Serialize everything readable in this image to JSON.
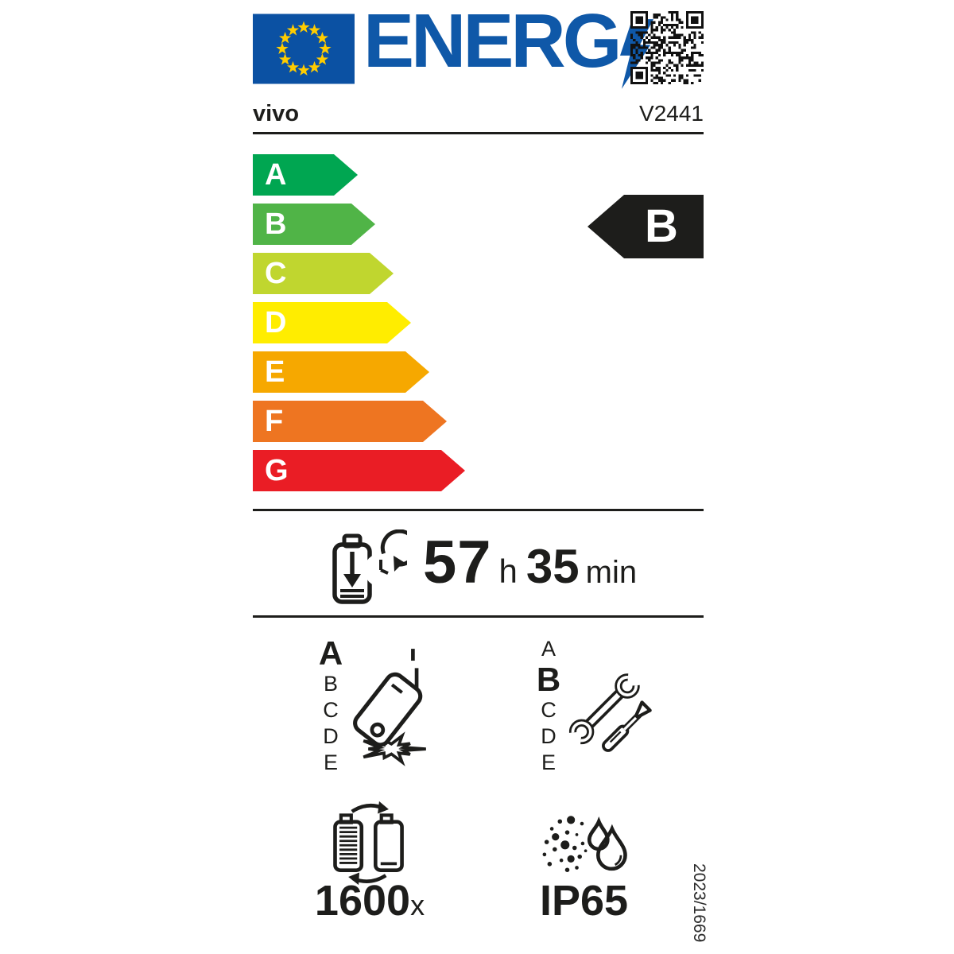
{
  "header": {
    "logo_text": "ENERG",
    "logo_color": "#0f58a8",
    "flag_color": "#0b51a3",
    "star_color": "#ffcc00"
  },
  "brand": {
    "name": "vivo",
    "model": "V2441"
  },
  "energy_scale": {
    "grades": [
      {
        "label": "A",
        "color": "#00a651"
      },
      {
        "label": "B",
        "color": "#50b447"
      },
      {
        "label": "C",
        "color": "#c0d62f"
      },
      {
        "label": "D",
        "color": "#ffed00"
      },
      {
        "label": "E",
        "color": "#f6a800"
      },
      {
        "label": "F",
        "color": "#ee7521"
      },
      {
        "label": "G",
        "color": "#ea1d25"
      }
    ],
    "rating": "B",
    "rating_color": "#1d1d1b"
  },
  "battery_endurance": {
    "hours": "57",
    "hours_unit": "h",
    "minutes": "35",
    "minutes_unit": "min"
  },
  "drop_class": {
    "scale": [
      "A",
      "B",
      "C",
      "D",
      "E"
    ],
    "selected": "A"
  },
  "repair_class": {
    "scale": [
      "A",
      "B",
      "C",
      "D",
      "E"
    ],
    "selected": "B"
  },
  "battery_cycles": {
    "value": "1600",
    "unit": "x"
  },
  "ip_rating": {
    "value": "IP65"
  },
  "regulation": "2023/1669",
  "icons": {
    "flag": "eu-flag",
    "logo_bolt": "lightning-bolt-icon",
    "qr": "qr-code",
    "endurance": "battery-discharge-clock-icon",
    "drop": "falling-phone-icon",
    "repair": "wrench-screwdriver-icon",
    "cycles": "battery-cycle-icon",
    "ip": "dust-water-icon"
  }
}
